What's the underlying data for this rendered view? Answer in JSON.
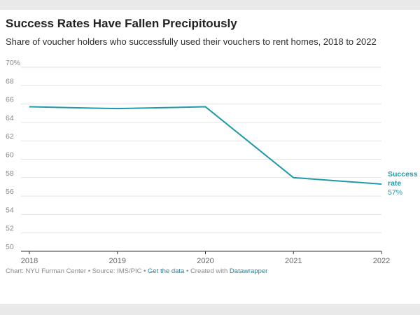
{
  "chart_data": {
    "type": "line",
    "title": "Success Rates Have Fallen Precipitously",
    "subtitle": "Share of voucher holders who successfully used their vouchers to rent homes, 2018 to 2022",
    "x": [
      "2018",
      "2019",
      "2020",
      "2021",
      "2022"
    ],
    "series": [
      {
        "name": "Success rate",
        "values": [
          65.7,
          65.5,
          65.7,
          58.0,
          57.3
        ],
        "color": "#1e9aa8",
        "end_label": [
          "Success",
          "rate",
          "57%"
        ]
      }
    ],
    "ylim": [
      50,
      70
    ],
    "y_ticks": [
      50,
      52,
      54,
      56,
      58,
      60,
      62,
      64,
      66,
      68,
      70
    ],
    "y_tick_labels": [
      "50",
      "52",
      "54",
      "56",
      "58",
      "60",
      "62",
      "64",
      "66",
      "68",
      "70%"
    ],
    "xlabel": "",
    "ylabel": "",
    "grid": true
  },
  "footer": {
    "prefix": "Chart: NYU Furman Center • Source: IMS/PIC • ",
    "link_data": "Get the data",
    "mid": " • Created with ",
    "link_tool": "Datawrapper"
  }
}
